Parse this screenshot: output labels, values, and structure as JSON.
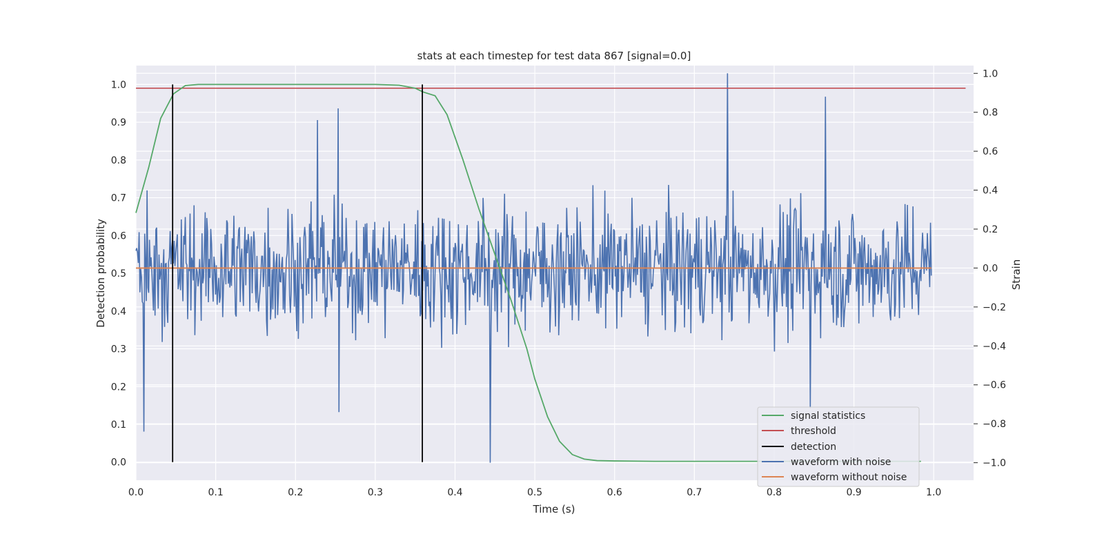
{
  "chart_data": {
    "type": "line",
    "title": "stats at each timestep for test data 867 [signal=0.0]",
    "xlabel": "Time (s)",
    "ylabel": "Detection probability",
    "y2label": "Strain",
    "xlim": [
      0.0,
      1.05
    ],
    "ylim": [
      -0.048,
      1.05
    ],
    "y2lim": [
      -1.09,
      1.04
    ],
    "xticks": [
      "0.0",
      "0.1",
      "0.2",
      "0.3",
      "0.4",
      "0.5",
      "0.6",
      "0.7",
      "0.8",
      "0.9",
      "1.0"
    ],
    "yticks": [
      "0.0",
      "0.1",
      "0.2",
      "0.3",
      "0.4",
      "0.5",
      "0.6",
      "0.7",
      "0.8",
      "0.9",
      "1.0"
    ],
    "y2ticks": [
      "−1.0",
      "−0.8",
      "−0.6",
      "−0.4",
      "−0.2",
      "0.0",
      "0.2",
      "0.4",
      "0.6",
      "0.8",
      "1.0"
    ],
    "grid": true,
    "legend_position": "lower-right",
    "signal_statistics": {
      "name": "signal statistics",
      "color": "#55a868",
      "x": [
        0.0,
        0.016,
        0.031,
        0.047,
        0.062,
        0.078,
        0.094,
        0.125,
        0.2,
        0.3,
        0.33,
        0.35,
        0.36,
        0.375,
        0.39,
        0.41,
        0.43,
        0.45,
        0.47,
        0.49,
        0.5,
        0.516,
        0.531,
        0.547,
        0.562,
        0.578,
        0.6,
        0.65,
        0.75,
        0.85,
        0.984
      ],
      "y": [
        0.66,
        0.78,
        0.91,
        0.975,
        0.997,
        1.0,
        1.0,
        1.0,
        1.0,
        1.0,
        0.998,
        0.99,
        0.98,
        0.97,
        0.92,
        0.8,
        0.67,
        0.55,
        0.43,
        0.3,
        0.22,
        0.12,
        0.055,
        0.02,
        0.008,
        0.004,
        0.003,
        0.002,
        0.002,
        0.002,
        0.002
      ]
    },
    "threshold": {
      "name": "threshold",
      "color": "#c44e52",
      "value": 0.99,
      "x": [
        0.0,
        1.04
      ]
    },
    "detection": {
      "name": "detection",
      "color": "#000000",
      "x": [
        0.046,
        0.359
      ],
      "y": [
        0.0,
        1.0
      ]
    },
    "waveform_with_noise": {
      "name": "waveform with noise",
      "color": "#4c72b0",
      "x_start": 0.0,
      "x_end": 0.997,
      "n_points": 1000,
      "approx_range": [
        -1.0,
        1.0
      ],
      "peaks": [
        {
          "x": 0.742,
          "y": 1.0
        },
        {
          "x": 0.444,
          "y": -1.0
        },
        {
          "x": 0.845,
          "y": -0.72
        },
        {
          "x": 0.864,
          "y": 0.88
        },
        {
          "x": 0.253,
          "y": 0.82
        },
        {
          "x": 0.228,
          "y": 0.76
        },
        {
          "x": 0.01,
          "y": -0.84
        },
        {
          "x": 0.254,
          "y": -0.74
        }
      ]
    },
    "waveform_without_noise": {
      "name": "waveform without noise",
      "color": "#dd8452",
      "value": 0.0
    }
  }
}
